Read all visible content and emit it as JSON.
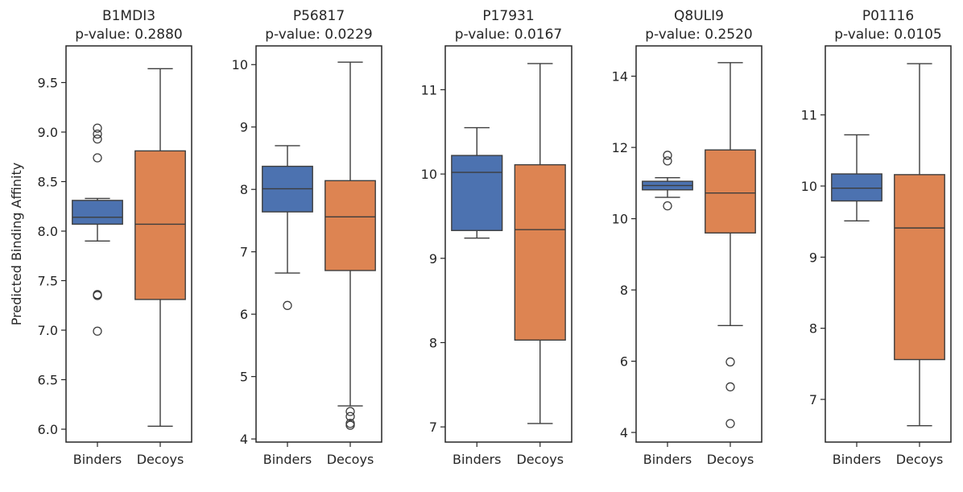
{
  "chart_data": [
    {
      "type": "box",
      "title": "B1MDI3",
      "subtitle": "p-value: 0.2880",
      "ylabel": "Predicted Binding Affinity",
      "categories": [
        "Binders",
        "Decoys"
      ],
      "ylim": [
        5.87,
        9.87
      ],
      "yticks": [
        6.0,
        6.5,
        7.0,
        7.5,
        8.0,
        8.5,
        9.0,
        9.5
      ],
      "ytick_labels": [
        "6.0",
        "6.5",
        "7.0",
        "7.5",
        "8.0",
        "8.5",
        "9.0",
        "9.5"
      ],
      "boxes": [
        {
          "name": "Binders",
          "color": "#4c72b0",
          "whisker_low": 7.9,
          "q1": 8.07,
          "median": 8.14,
          "q3": 8.31,
          "whisker_high": 8.33,
          "outliers": [
            9.04,
            8.98,
            8.93,
            8.74,
            7.36,
            7.35,
            6.99
          ]
        },
        {
          "name": "Decoys",
          "color": "#dd8452",
          "whisker_low": 6.03,
          "q1": 7.31,
          "median": 8.07,
          "q3": 8.81,
          "whisker_high": 9.64,
          "outliers": []
        }
      ]
    },
    {
      "type": "box",
      "title": "P56817",
      "subtitle": "p-value: 0.0229",
      "ylabel": "",
      "categories": [
        "Binders",
        "Decoys"
      ],
      "ylim": [
        3.95,
        10.3
      ],
      "yticks": [
        4,
        5,
        6,
        7,
        8,
        9,
        10
      ],
      "ytick_labels": [
        "4",
        "5",
        "6",
        "7",
        "8",
        "9",
        "10"
      ],
      "boxes": [
        {
          "name": "Binders",
          "color": "#4c72b0",
          "whisker_low": 6.66,
          "q1": 7.64,
          "median": 8.01,
          "q3": 8.37,
          "whisker_high": 8.7,
          "outliers": [
            6.14
          ]
        },
        {
          "name": "Decoys",
          "color": "#dd8452",
          "whisker_low": 4.53,
          "q1": 6.7,
          "median": 7.56,
          "q3": 8.14,
          "whisker_high": 10.04,
          "outliers": [
            4.44,
            4.36,
            4.25,
            4.22
          ]
        }
      ]
    },
    {
      "type": "box",
      "title": "P17931",
      "subtitle": "p-value: 0.0167",
      "ylabel": "",
      "categories": [
        "Binders",
        "Decoys"
      ],
      "ylim": [
        6.82,
        11.52
      ],
      "yticks": [
        7,
        8,
        9,
        10,
        11
      ],
      "ytick_labels": [
        "7",
        "8",
        "9",
        "10",
        "11"
      ],
      "boxes": [
        {
          "name": "Binders",
          "color": "#4c72b0",
          "whisker_low": 9.24,
          "q1": 9.33,
          "median": 10.02,
          "q3": 10.22,
          "whisker_high": 10.55,
          "outliers": []
        },
        {
          "name": "Decoys",
          "color": "#dd8452",
          "whisker_low": 7.04,
          "q1": 8.03,
          "median": 9.34,
          "q3": 10.11,
          "whisker_high": 11.31,
          "outliers": []
        }
      ]
    },
    {
      "type": "box",
      "title": "Q8ULI9",
      "subtitle": "p-value: 0.2520",
      "ylabel": "",
      "categories": [
        "Binders",
        "Decoys"
      ],
      "ylim": [
        3.73,
        14.85
      ],
      "yticks": [
        4,
        6,
        8,
        10,
        12,
        14
      ],
      "ytick_labels": [
        "4",
        "6",
        "8",
        "10",
        "12",
        "14"
      ],
      "boxes": [
        {
          "name": "Binders",
          "color": "#4c72b0",
          "whisker_low": 10.6,
          "q1": 10.81,
          "median": 10.93,
          "q3": 11.05,
          "whisker_high": 11.15,
          "outliers": [
            11.78,
            11.62,
            10.36
          ]
        },
        {
          "name": "Decoys",
          "color": "#dd8452",
          "whisker_low": 7.0,
          "q1": 9.6,
          "median": 10.72,
          "q3": 11.93,
          "whisker_high": 14.38,
          "outliers": [
            5.98,
            5.28,
            4.25
          ]
        }
      ]
    },
    {
      "type": "box",
      "title": "P01116",
      "subtitle": "p-value: 0.0105",
      "ylabel": "",
      "categories": [
        "Binders",
        "Decoys"
      ],
      "ylim": [
        6.4,
        11.97
      ],
      "yticks": [
        7,
        8,
        9,
        10,
        11
      ],
      "ytick_labels": [
        "7",
        "8",
        "9",
        "10",
        "11"
      ],
      "boxes": [
        {
          "name": "Binders",
          "color": "#4c72b0",
          "whisker_low": 9.51,
          "q1": 9.79,
          "median": 9.97,
          "q3": 10.17,
          "whisker_high": 10.72,
          "outliers": []
        },
        {
          "name": "Decoys",
          "color": "#dd8452",
          "whisker_low": 6.63,
          "q1": 7.56,
          "median": 9.41,
          "q3": 10.16,
          "whisker_high": 11.72,
          "outliers": []
        }
      ]
    }
  ]
}
